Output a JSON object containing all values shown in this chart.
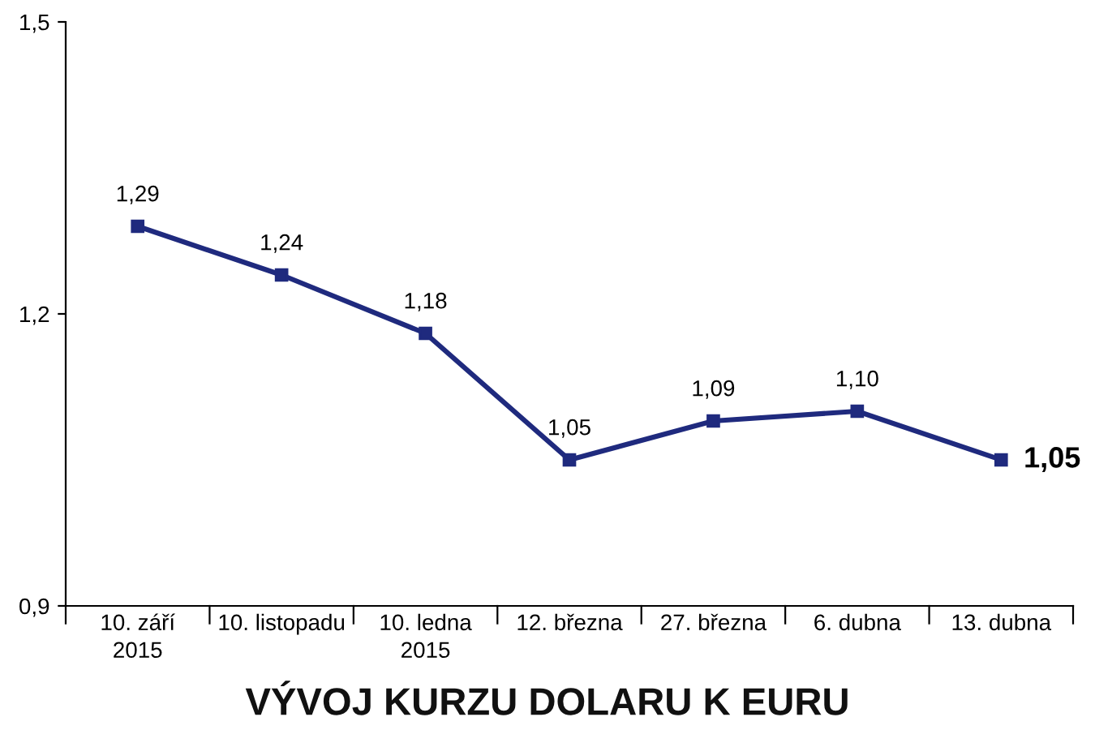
{
  "chart_data": {
    "type": "line",
    "title": "VÝVOJ KURZU DOLARU K EURU",
    "categories": [
      "10. září\n2015",
      "10. listopadu",
      "10. ledna\n2015",
      "12. března",
      "27. března",
      "6. dubna",
      "13. dubna"
    ],
    "series": [
      {
        "color": "#1f2a7e",
        "values": [
          1.29,
          1.24,
          1.18,
          1.05,
          1.09,
          1.1,
          1.05
        ]
      }
    ],
    "value_labels": [
      "1,29",
      "1,24",
      "1,18",
      "1,05",
      "1,09",
      "1,10",
      "1,05"
    ],
    "ylim": [
      0.9,
      1.5
    ],
    "yticks": [
      {
        "value": 0.9,
        "label": "0,9"
      },
      {
        "value": 1.2,
        "label": "1,2"
      },
      {
        "value": 1.5,
        "label": "1,5"
      }
    ],
    "marker": "square",
    "line_style": "solid",
    "grid": false,
    "legend": false
  }
}
